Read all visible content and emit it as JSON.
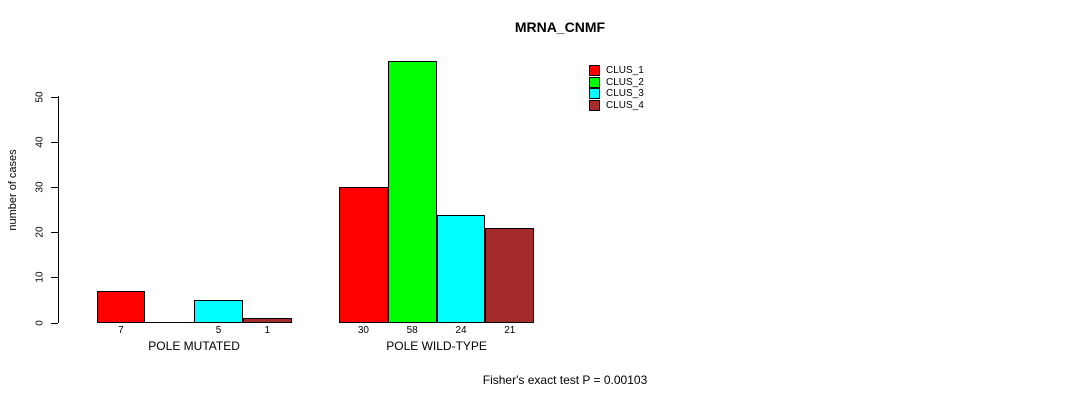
{
  "chart_data": {
    "type": "bar",
    "title": "MRNA_CNMF",
    "ylabel": "number of cases",
    "xlabel": "",
    "categories": [
      "POLE MUTATED",
      "POLE WILD-TYPE"
    ],
    "series": [
      {
        "name": "CLUS_1",
        "color": "#ff0000",
        "values": [
          7,
          30
        ]
      },
      {
        "name": "CLUS_2",
        "color": "#00ff00",
        "values": [
          0,
          58
        ]
      },
      {
        "name": "CLUS_3",
        "color": "#00ffff",
        "values": [
          5,
          24
        ]
      },
      {
        "name": "CLUS_4",
        "color": "#a52a2a",
        "values": [
          1,
          21
        ]
      }
    ],
    "value_labels": [
      [
        "7",
        "",
        "5",
        "1"
      ],
      [
        "30",
        "58",
        "24",
        "21"
      ]
    ],
    "yticks": [
      0,
      10,
      20,
      30,
      40,
      50
    ],
    "ylim": [
      0,
      58
    ],
    "grid": false,
    "legend_position": "top-right",
    "annotation": "Fisher's exact test P = 0.00103",
    "colors": {
      "axis": "#000000",
      "bar_border": "#000000",
      "background": "#ffffff"
    }
  }
}
